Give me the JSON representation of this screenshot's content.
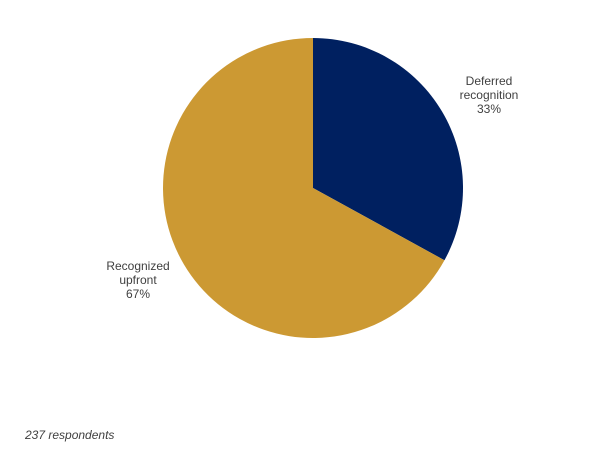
{
  "chart_data": {
    "type": "pie",
    "title": "",
    "slices": [
      {
        "label_lines": [
          "Deferred",
          "recognition"
        ],
        "value": 33,
        "value_label": "33%",
        "color": "#002060"
      },
      {
        "label_lines": [
          "Recognized",
          "upfront"
        ],
        "value": 67,
        "value_label": "67%",
        "color": "#CC9933"
      }
    ],
    "legend": "none"
  },
  "footnote": "237 respondents"
}
